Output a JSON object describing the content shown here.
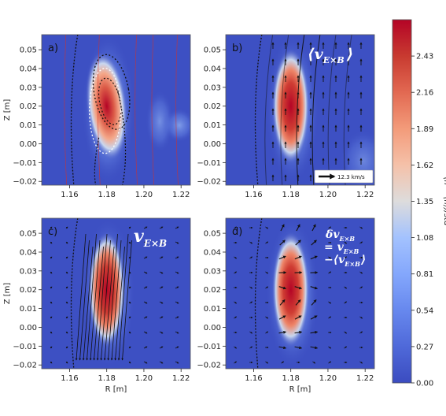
{
  "chart_data": {
    "type": "heatmap",
    "colorbar": {
      "label": "(n − ⟨n⟩)/std",
      "ticks": [
        "0.00",
        "0.27",
        "0.54",
        "0.81",
        "1.08",
        "1.35",
        "1.62",
        "1.89",
        "2.16",
        "2.43"
      ],
      "range": [
        0.0,
        2.7
      ],
      "colormap": "coolwarm",
      "low_color": "#3b4cc0",
      "high_color": "#b40426"
    },
    "axes": {
      "xlabel": "R [m]",
      "ylabel": "Z [m]",
      "xlim": [
        1.145,
        1.225
      ],
      "ylim": [
        -0.022,
        0.058
      ],
      "xticks": [
        "1.16",
        "1.18",
        "1.20",
        "1.22"
      ],
      "yticks": [
        "0.05",
        "0.04",
        "0.03",
        "0.02",
        "0.01",
        "0.00",
        "−0.01",
        "−0.02"
      ]
    },
    "panels": [
      {
        "id": "a",
        "label": "a)",
        "annotation": []
      },
      {
        "id": "b",
        "label": "b)",
        "annotation": [
          "⟨v",
          "E×B",
          "⟩"
        ],
        "scale_arrow_label": "12.3 km/s"
      },
      {
        "id": "c",
        "label": "c)",
        "annotation": [
          "v",
          "E×B"
        ]
      },
      {
        "id": "d",
        "label": "d)",
        "annotation": [
          "δv",
          "E×B",
          "= v",
          "E×B",
          "−⟨v",
          "E×B",
          "⟩"
        ]
      }
    ],
    "blob": {
      "center_r": 1.18,
      "center_z": 0.02,
      "peak": 2.6
    }
  }
}
